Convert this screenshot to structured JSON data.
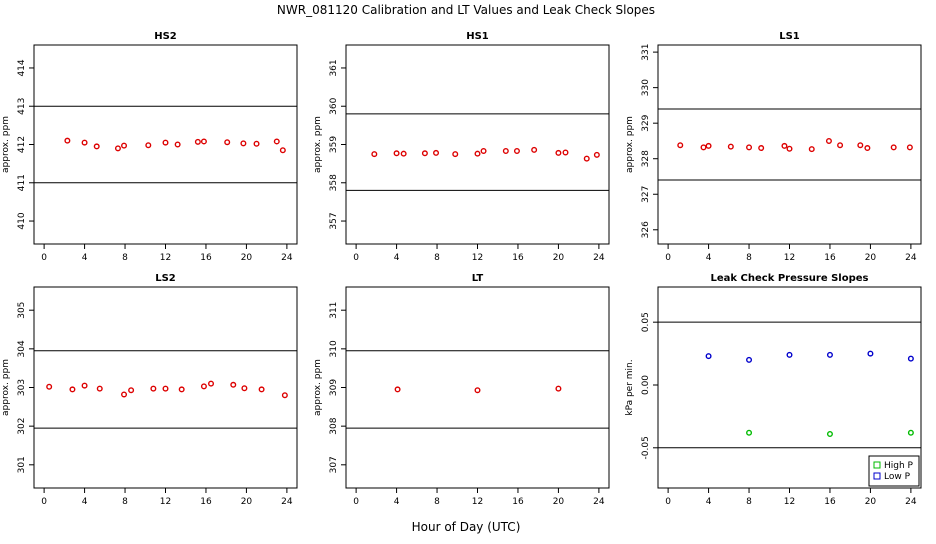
{
  "title": "NWR_081120  Calibration and LT Values and Leak Check Slopes",
  "xlabel": "Hour of Day (UTC)",
  "chart_data": [
    {
      "id": "hs2",
      "type": "scatter",
      "title": "HS2",
      "ylabel": "approx. ppm",
      "xlim": [
        -1,
        25
      ],
      "ylim": [
        409.4,
        414.6
      ],
      "xticks": [
        0,
        4,
        8,
        12,
        16,
        20,
        24
      ],
      "yticks": [
        410,
        411,
        412,
        413,
        414
      ],
      "hlines": [
        413,
        411
      ],
      "marker_color": "#dd0000",
      "points": [
        [
          2.3,
          412.1
        ],
        [
          4.0,
          412.05
        ],
        [
          5.2,
          411.95
        ],
        [
          7.3,
          411.9
        ],
        [
          7.9,
          411.97
        ],
        [
          10.3,
          411.98
        ],
        [
          12.0,
          412.05
        ],
        [
          13.2,
          412.0
        ],
        [
          15.2,
          412.07
        ],
        [
          15.8,
          412.08
        ],
        [
          18.1,
          412.06
        ],
        [
          19.7,
          412.03
        ],
        [
          21.0,
          412.02
        ],
        [
          23.0,
          412.08
        ],
        [
          23.6,
          411.85
        ]
      ]
    },
    {
      "id": "hs1",
      "type": "scatter",
      "title": "HS1",
      "ylabel": "approx. ppm",
      "xlim": [
        -1,
        25
      ],
      "ylim": [
        356.4,
        361.6
      ],
      "xticks": [
        0,
        4,
        8,
        12,
        16,
        20,
        24
      ],
      "yticks": [
        357,
        358,
        359,
        360,
        361
      ],
      "hlines": [
        359.8,
        357.8
      ],
      "marker_color": "#dd0000",
      "points": [
        [
          1.8,
          358.75
        ],
        [
          4.0,
          358.77
        ],
        [
          4.7,
          358.76
        ],
        [
          6.8,
          358.77
        ],
        [
          7.9,
          358.78
        ],
        [
          9.8,
          358.75
        ],
        [
          12.0,
          358.76
        ],
        [
          12.6,
          358.83
        ],
        [
          14.8,
          358.83
        ],
        [
          15.9,
          358.83
        ],
        [
          17.6,
          358.86
        ],
        [
          20.0,
          358.78
        ],
        [
          20.7,
          358.79
        ],
        [
          22.8,
          358.63
        ],
        [
          23.8,
          358.73
        ]
      ]
    },
    {
      "id": "ls1",
      "type": "scatter",
      "title": "LS1",
      "ylabel": "approx. ppm",
      "xlim": [
        -1,
        25
      ],
      "ylim": [
        325.6,
        331.2
      ],
      "xticks": [
        0,
        4,
        8,
        12,
        16,
        20,
        24
      ],
      "yticks": [
        326,
        327,
        328,
        329,
        330,
        331
      ],
      "hlines": [
        329.4,
        327.4
      ],
      "marker_color": "#dd0000",
      "points": [
        [
          1.2,
          328.38
        ],
        [
          3.5,
          328.32
        ],
        [
          4.0,
          328.36
        ],
        [
          6.2,
          328.34
        ],
        [
          8.0,
          328.32
        ],
        [
          9.2,
          328.3
        ],
        [
          11.5,
          328.36
        ],
        [
          12.0,
          328.28
        ],
        [
          14.2,
          328.27
        ],
        [
          15.9,
          328.5
        ],
        [
          17.0,
          328.38
        ],
        [
          19.0,
          328.38
        ],
        [
          19.7,
          328.3
        ],
        [
          22.3,
          328.32
        ],
        [
          23.9,
          328.32
        ]
      ]
    },
    {
      "id": "ls2",
      "type": "scatter",
      "title": "LS2",
      "ylabel": "approx. ppm",
      "xlim": [
        -1,
        25
      ],
      "ylim": [
        300.4,
        305.6
      ],
      "xticks": [
        0,
        4,
        8,
        12,
        16,
        20,
        24
      ],
      "yticks": [
        301,
        302,
        303,
        304,
        305
      ],
      "hlines": [
        303.95,
        301.95
      ],
      "marker_color": "#dd0000",
      "points": [
        [
          0.5,
          303.02
        ],
        [
          2.8,
          302.95
        ],
        [
          4.0,
          303.05
        ],
        [
          5.5,
          302.97
        ],
        [
          7.9,
          302.82
        ],
        [
          8.6,
          302.93
        ],
        [
          10.8,
          302.97
        ],
        [
          12.0,
          302.97
        ],
        [
          13.6,
          302.95
        ],
        [
          15.8,
          303.03
        ],
        [
          16.5,
          303.1
        ],
        [
          18.7,
          303.07
        ],
        [
          19.8,
          302.98
        ],
        [
          21.5,
          302.95
        ],
        [
          23.8,
          302.8
        ]
      ]
    },
    {
      "id": "lt",
      "type": "scatter",
      "title": "LT",
      "ylabel": "approx. ppm",
      "xlim": [
        -1,
        25
      ],
      "ylim": [
        306.4,
        311.6
      ],
      "xticks": [
        0,
        4,
        8,
        12,
        16,
        20,
        24
      ],
      "yticks": [
        307,
        308,
        309,
        310,
        311
      ],
      "hlines": [
        309.95,
        307.95
      ],
      "marker_color": "#dd0000",
      "points": [
        [
          4.1,
          308.95
        ],
        [
          12.0,
          308.93
        ],
        [
          20.0,
          308.97
        ]
      ]
    },
    {
      "id": "leak",
      "type": "scatter",
      "title": "Leak Check Pressure Slopes",
      "ylabel": "kPa per min.",
      "xlim": [
        -1,
        25
      ],
      "ylim": [
        -0.082,
        0.078
      ],
      "xticks": [
        0,
        4,
        8,
        12,
        16,
        20,
        24
      ],
      "yticks": [
        -0.05,
        0.0,
        0.05
      ],
      "ytick_labels": [
        "-0.05",
        "0.00",
        "0.05"
      ],
      "hlines": [
        0.05,
        -0.05
      ],
      "series": [
        {
          "name": "High P",
          "color": "#00bb00",
          "points": [
            [
              8,
              -0.038
            ],
            [
              16,
              -0.039
            ],
            [
              24,
              -0.038
            ]
          ]
        },
        {
          "name": "Low P",
          "color": "#0000cc",
          "points": [
            [
              4,
              0.023
            ],
            [
              8,
              0.02
            ],
            [
              12,
              0.024
            ],
            [
              16,
              0.024
            ],
            [
              20,
              0.025
            ],
            [
              24,
              0.021
            ]
          ]
        }
      ],
      "legend": {
        "position": "bottom-right",
        "entries": [
          "High P",
          "Low P"
        ]
      }
    }
  ]
}
